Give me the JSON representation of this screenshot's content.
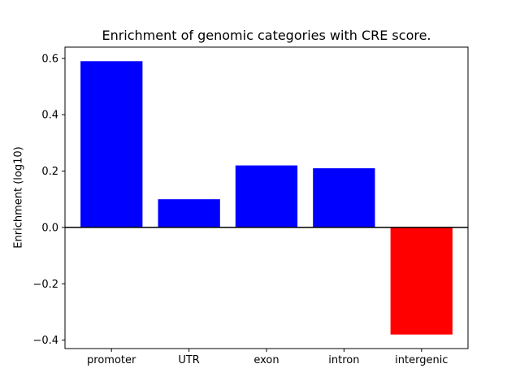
{
  "chart_data": {
    "type": "bar",
    "title": "Enrichment of genomic categories with CRE score.",
    "xlabel": "",
    "ylabel": "Enrichment (log10)",
    "categories": [
      "promoter",
      "UTR",
      "exon",
      "intron",
      "intergenic"
    ],
    "values": [
      0.59,
      0.1,
      0.22,
      0.21,
      -0.38
    ],
    "bar_colors": [
      "#0000ff",
      "#0000ff",
      "#0000ff",
      "#0000ff",
      "#ff0000"
    ],
    "positive_color": "#0000ff",
    "negative_color": "#ff0000",
    "bar_width": 0.8,
    "ylim": [
      -0.43,
      0.64
    ],
    "yticks": [
      -0.4,
      -0.2,
      0.0,
      0.2,
      0.4,
      0.6
    ],
    "ytick_labels": [
      "−0.4",
      "−0.2",
      "0.0",
      "0.2",
      "0.4",
      "0.6"
    ],
    "grid": false,
    "legend": null,
    "zero_line": true,
    "frame_color": "#000000",
    "background_color": "#ffffff"
  }
}
